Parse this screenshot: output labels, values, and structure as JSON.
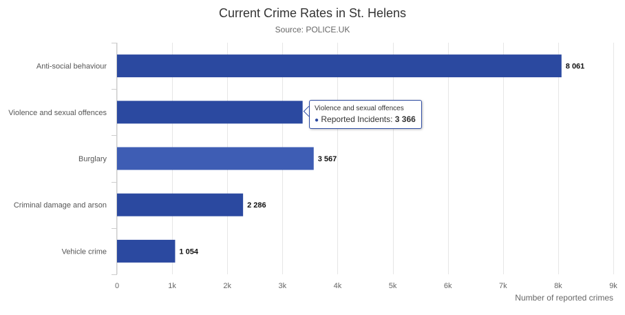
{
  "chart_data": {
    "type": "bar",
    "orientation": "horizontal",
    "title": "Current Crime Rates in St. Helens",
    "subtitle": "Source: POLICE.UK",
    "categories": [
      "Anti-social behaviour",
      "Violence and sexual offences",
      "Burglary",
      "Criminal damage and arson",
      "Vehicle crime"
    ],
    "values": [
      8061,
      3366,
      3567,
      2286,
      1054
    ],
    "data_labels": [
      "8 061",
      "",
      "3 567",
      "2 286",
      "1 054"
    ],
    "xlabel": "Number of reported crimes",
    "ylabel": "",
    "xlim": [
      0,
      9000
    ],
    "x_ticks": [
      0,
      1000,
      2000,
      3000,
      4000,
      5000,
      6000,
      7000,
      8000,
      9000
    ],
    "x_tick_labels": [
      "0",
      "1k",
      "2k",
      "3k",
      "4k",
      "5k",
      "6k",
      "7k",
      "8k",
      "9k"
    ],
    "grid": true,
    "highlighted_index": 2,
    "bar_color": "#2b49a0",
    "highlight_color": "#3e5db4",
    "tooltip": {
      "category": "Violence and sexual offences",
      "series_label": "Reported Incidents: ",
      "value_text": "3 366"
    }
  }
}
